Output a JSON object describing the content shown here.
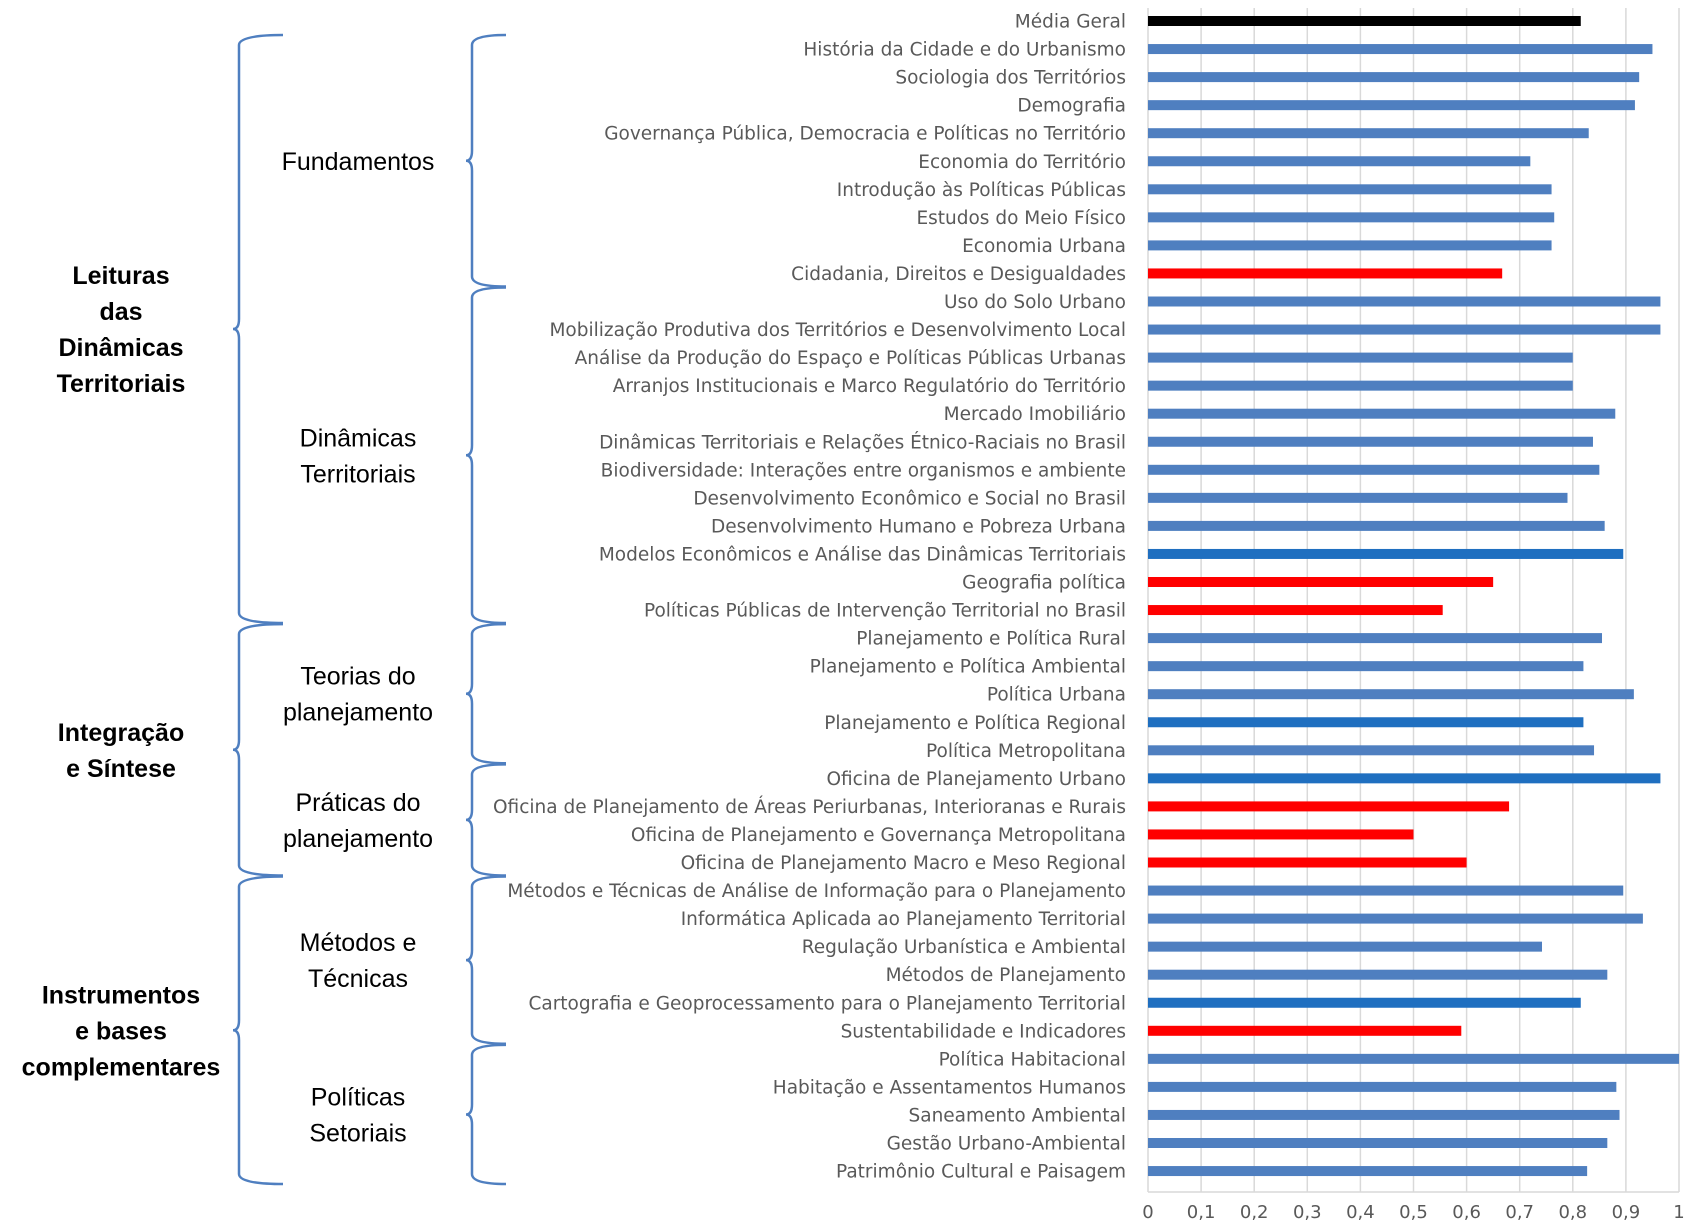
{
  "chart_data": {
    "type": "bar",
    "orientation": "horizontal",
    "xlim": [
      0,
      1
    ],
    "xticks": [
      "0",
      "0,1",
      "0,2",
      "0,3",
      "0,4",
      "0,5",
      "0,6",
      "0,7",
      "0,8",
      "0,9",
      "1"
    ],
    "grid": true,
    "bars": [
      {
        "label": "Média Geral",
        "value": 0.815,
        "color": "#000000"
      },
      {
        "label": "História da Cidade e do Urbanismo",
        "value": 0.95,
        "color": "#4f7fc0"
      },
      {
        "label": "Sociologia dos Territórios",
        "value": 0.925,
        "color": "#4f7fc0"
      },
      {
        "label": "Demografia",
        "value": 0.917,
        "color": "#4f7fc0"
      },
      {
        "label": "Governança Pública, Democracia e Políticas no Território",
        "value": 0.83,
        "color": "#4f7fc0"
      },
      {
        "label": "Economia do Território",
        "value": 0.72,
        "color": "#4f7fc0"
      },
      {
        "label": "Introdução às Políticas Públicas",
        "value": 0.76,
        "color": "#4f7fc0"
      },
      {
        "label": "Estudos do Meio Físico",
        "value": 0.765,
        "color": "#4f7fc0"
      },
      {
        "label": "Economia Urbana",
        "value": 0.76,
        "color": "#4f7fc0"
      },
      {
        "label": "Cidadania, Direitos e Desigualdades",
        "value": 0.667,
        "color": "#ff0000"
      },
      {
        "label": "Uso do Solo Urbano",
        "value": 0.965,
        "color": "#4f7fc0"
      },
      {
        "label": "Mobilização Produtiva dos Territórios e Desenvolvimento Local",
        "value": 0.965,
        "color": "#4f7fc0"
      },
      {
        "label": "Análise da Produção do Espaço e Políticas Públicas Urbanas",
        "value": 0.8,
        "color": "#4f7fc0"
      },
      {
        "label": "Arranjos Institucionais e Marco Regulatório do Território",
        "value": 0.8,
        "color": "#4f7fc0"
      },
      {
        "label": "Mercado Imobiliário",
        "value": 0.88,
        "color": "#4f7fc0"
      },
      {
        "label": "Dinâmicas Territoriais e Relações Étnico-Raciais no Brasil",
        "value": 0.838,
        "color": "#4f7fc0"
      },
      {
        "label": "Biodiversidade: Interações entre organismos e ambiente",
        "value": 0.85,
        "color": "#4f7fc0"
      },
      {
        "label": "Desenvolvimento Econômico e Social no Brasil",
        "value": 0.79,
        "color": "#4f7fc0"
      },
      {
        "label": "Desenvolvimento Humano e Pobreza Urbana",
        "value": 0.86,
        "color": "#4f7fc0"
      },
      {
        "label": "Modelos Econômicos e Análise das Dinâmicas Territoriais",
        "value": 0.895,
        "color": "#1f6fc0"
      },
      {
        "label": "Geografia política",
        "value": 0.65,
        "color": "#ff0000"
      },
      {
        "label": "Políticas Públicas de Intervenção Territorial no Brasil",
        "value": 0.555,
        "color": "#ff0000"
      },
      {
        "label": "Planejamento e Política Rural",
        "value": 0.855,
        "color": "#4f7fc0"
      },
      {
        "label": "Planejamento e Política Ambiental",
        "value": 0.82,
        "color": "#4f7fc0"
      },
      {
        "label": "Política Urbana",
        "value": 0.915,
        "color": "#4f7fc0"
      },
      {
        "label": "Planejamento e Política Regional",
        "value": 0.82,
        "color": "#1f6fc0"
      },
      {
        "label": "Política Metropolitana",
        "value": 0.84,
        "color": "#4f7fc0"
      },
      {
        "label": "Oficina de Planejamento Urbano",
        "value": 0.965,
        "color": "#1f6fc0"
      },
      {
        "label": "Oficina de Planejamento de Áreas Periurbanas, Interioranas e Rurais",
        "value": 0.68,
        "color": "#ff0000"
      },
      {
        "label": "Oficina de Planejamento e Governança Metropolitana",
        "value": 0.5,
        "color": "#ff0000"
      },
      {
        "label": "Oficina de Planejamento Macro e Meso Regional",
        "value": 0.6,
        "color": "#ff0000"
      },
      {
        "label": "Métodos e Técnicas de Análise de Informação para o Planejamento",
        "value": 0.895,
        "color": "#4f7fc0"
      },
      {
        "label": "Informática Aplicada ao Planejamento Territorial",
        "value": 0.932,
        "color": "#4f7fc0"
      },
      {
        "label": "Regulação Urbanística e Ambiental",
        "value": 0.742,
        "color": "#4f7fc0"
      },
      {
        "label": "Métodos de Planejamento",
        "value": 0.865,
        "color": "#4f7fc0"
      },
      {
        "label": "Cartografia e Geoprocessamento para o Planejamento Territorial",
        "value": 0.815,
        "color": "#1f6fc0"
      },
      {
        "label": "Sustentabilidade e Indicadores",
        "value": 0.59,
        "color": "#ff0000"
      },
      {
        "label": "Política Habitacional",
        "value": 1.0,
        "color": "#4f7fc0"
      },
      {
        "label": "Habitação e Assentamentos Humanos",
        "value": 0.882,
        "color": "#4f7fc0"
      },
      {
        "label": "Saneamento Ambiental",
        "value": 0.888,
        "color": "#4f7fc0"
      },
      {
        "label": "Gestão Urbano-Ambiental",
        "value": 0.865,
        "color": "#4f7fc0"
      },
      {
        "label": "Patrimônio Cultural e Paisagem",
        "value": 0.827,
        "color": "#4f7fc0"
      }
    ],
    "subgroups": [
      {
        "lines": [
          "Fundamentos"
        ],
        "first": 1,
        "last": 9
      },
      {
        "lines": [
          "Dinâmicas",
          "Territoriais"
        ],
        "first": 10,
        "last": 21
      },
      {
        "lines": [
          "Teorias do",
          "planejamento"
        ],
        "first": 22,
        "last": 26
      },
      {
        "lines": [
          "Práticas do",
          "planejamento"
        ],
        "first": 27,
        "last": 30
      },
      {
        "lines": [
          "Métodos e",
          "Técnicas"
        ],
        "first": 31,
        "last": 36
      },
      {
        "lines": [
          "Políticas",
          "Setoriais"
        ],
        "first": 37,
        "last": 41
      }
    ],
    "groups": [
      {
        "lines": [
          "Leituras",
          "das",
          "Dinâmicas",
          "Territoriais"
        ],
        "first": 1,
        "last": 21
      },
      {
        "lines": [
          "Integração",
          "e Síntese"
        ],
        "first": 22,
        "last": 30
      },
      {
        "lines": [
          "Instrumentos",
          "e bases",
          "complementares"
        ],
        "first": 31,
        "last": 41
      }
    ]
  }
}
